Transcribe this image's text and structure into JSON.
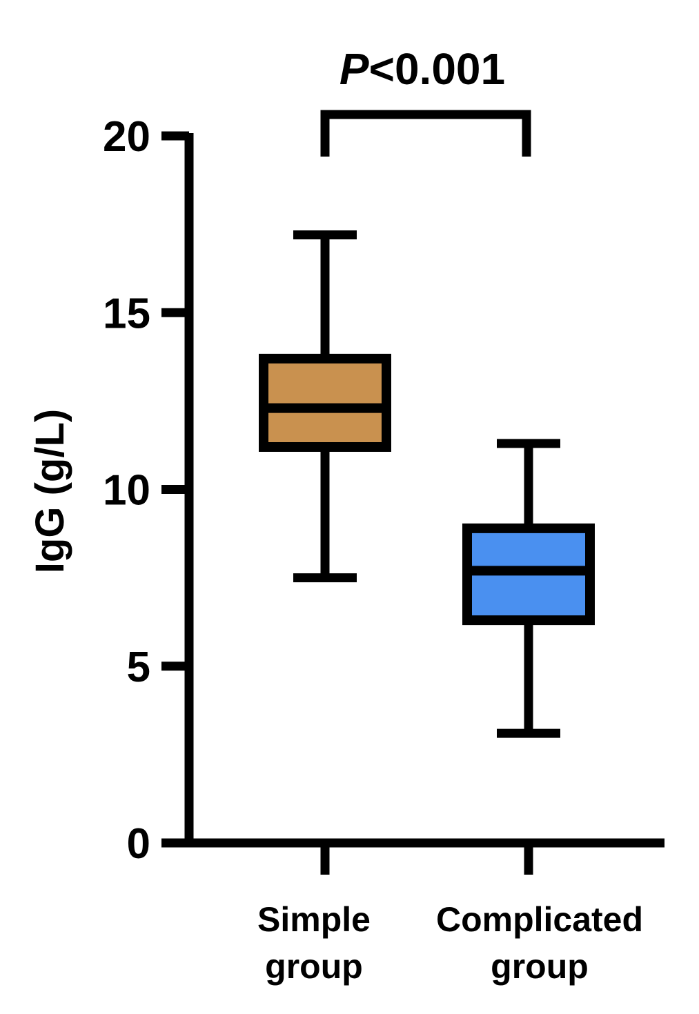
{
  "chart_data": {
    "type": "box",
    "ylabel": "IgG (g/L)",
    "ylim": [
      0,
      20
    ],
    "yticks": [
      0,
      5,
      10,
      15,
      20
    ],
    "grid": false,
    "categories": [
      {
        "lines": [
          "Simple",
          "group"
        ]
      },
      {
        "lines": [
          "Complicated",
          "group"
        ]
      }
    ],
    "series": [
      {
        "category": "Simple group",
        "min": 7.5,
        "q1": 11.2,
        "median": 12.3,
        "q3": 13.7,
        "max": 17.2,
        "color": "#C9914F"
      },
      {
        "category": "Complicated group",
        "min": 3.1,
        "q1": 6.3,
        "median": 7.7,
        "q3": 8.9,
        "max": 11.3,
        "color": "#4A90F0"
      }
    ],
    "annotation": {
      "italic": "P",
      "text": "<0.001"
    }
  }
}
